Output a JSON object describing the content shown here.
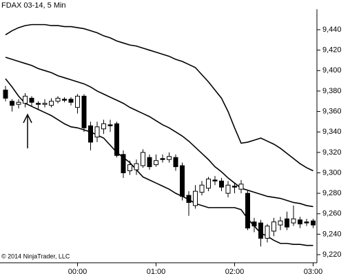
{
  "chart_data": {
    "type": "candlestick",
    "title": "FDAX 03-14, 5 Min",
    "annotation": "© 2014 NinjaTrader, LLC",
    "categories": [
      null,
      null,
      null,
      null,
      null,
      null,
      null,
      null,
      null,
      null,
      null,
      "00:00",
      null,
      null,
      null,
      null,
      null,
      null,
      null,
      null,
      null,
      null,
      null,
      "01:00",
      null,
      null,
      null,
      null,
      null,
      null,
      null,
      null,
      null,
      null,
      null,
      "02:00",
      null,
      null,
      null,
      null,
      null,
      null,
      null,
      null,
      null,
      null,
      null,
      "03:00"
    ],
    "open": [
      9381,
      9370,
      9367,
      9368,
      9373,
      9368,
      9367,
      9366,
      9370,
      9372,
      9372,
      9364,
      9375,
      9346,
      9335,
      9343,
      9347,
      9348,
      9318,
      9302,
      9303,
      9307,
      9315,
      9308,
      9314,
      9313,
      9315,
      9307,
      9278,
      9268,
      9281,
      9285,
      9293,
      9292,
      9280,
      9287,
      9284,
      9280,
      9252,
      9251,
      9236,
      9243,
      9249,
      9255,
      9251,
      9254,
      9252,
      9253
    ],
    "high": [
      9385,
      9372,
      9372,
      9378,
      9375,
      9370,
      9372,
      9373,
      9375,
      9374,
      9374,
      9377,
      9377,
      9350,
      9350,
      9352,
      9352,
      9350,
      9322,
      9312,
      9313,
      9323,
      9318,
      9318,
      9318,
      9320,
      9318,
      9310,
      9282,
      9288,
      9292,
      9296,
      9297,
      9295,
      9292,
      9290,
      9293,
      9283,
      9256,
      9254,
      9250,
      9256,
      9257,
      9262,
      9268,
      9257,
      9255,
      9255
    ],
    "low": [
      9370,
      9360,
      9363,
      9364,
      9365,
      9362,
      9364,
      9364,
      9368,
      9369,
      9366,
      9358,
      9340,
      9322,
      9330,
      9338,
      9340,
      9315,
      9295,
      9298,
      9298,
      9305,
      9303,
      9306,
      9310,
      9310,
      9302,
      9273,
      9258,
      9265,
      9278,
      9282,
      9288,
      9282,
      9276,
      9280,
      9280,
      9244,
      9242,
      9228,
      9232,
      9238,
      9244,
      9244,
      9248,
      9246,
      9248,
      9246
    ],
    "close": [
      9373,
      9366,
      9369,
      9375,
      9369,
      9367,
      9368,
      9370,
      9373,
      9371,
      9369,
      9375,
      9344,
      9330,
      9345,
      9348,
      9346,
      9317,
      9300,
      9308,
      9309,
      9320,
      9306,
      9312,
      9313,
      9316,
      9306,
      9277,
      9271,
      9282,
      9288,
      9294,
      9292,
      9286,
      9288,
      9286,
      9289,
      9246,
      9248,
      9236,
      9248,
      9252,
      9253,
      9247,
      9255,
      9250,
      9251,
      9249
    ],
    "bands": [
      {
        "values": [
          9435,
          9439,
          9442,
          9444,
          9445,
          9445,
          9445,
          9444,
          9444,
          9443,
          9443,
          9442,
          9441,
          9439,
          9437,
          9434,
          9432,
          9429,
          9427,
          9425,
          9424,
          9422,
          9420,
          9418,
          9416,
          9414,
          9411,
          9409,
          9406,
          9403,
          9396,
          9389,
          9381,
          9373,
          9360,
          9344,
          9329,
          9330,
          9332,
          9334,
          9331,
          9328,
          9324,
          9319,
          9314,
          9309,
          9305,
          9302
        ]
      },
      {
        "values": [
          9413,
          9411,
          9409,
          9407,
          9405,
          9402,
          9400,
          9398,
          9395,
          9393,
          9391,
          9389,
          9387,
          9384,
          9380,
          9377,
          9374,
          9371,
          9368,
          9364,
          9361,
          9358,
          9355,
          9351,
          9347,
          9344,
          9340,
          9336,
          9331,
          9325,
          9319,
          9313,
          9306,
          9301,
          9295,
          9290,
          9285,
          9283,
          9281,
          9279,
          9277,
          9276,
          9275,
          9273,
          9271,
          9270,
          9268,
          9267
        ]
      },
      {
        "values": [
          9392,
          9384,
          9375,
          9368,
          9365,
          9362,
          9359,
          9356,
          9352,
          9348,
          9345,
          9344,
          9342,
          9340,
          9337,
          9334,
          9327,
          9320,
          9315,
          9310,
          9303,
          9296,
          9293,
          9290,
          9287,
          9284,
          9280,
          9277,
          9274,
          9270,
          9268,
          9266,
          9266,
          9266,
          9266,
          9266,
          9264,
          9255,
          9248,
          9241,
          9238,
          9234,
          9231,
          9231,
          9230,
          9230,
          9229,
          9229
        ]
      }
    ],
    "up_color": "#ffffff",
    "down_color": "#000000",
    "line_color": "#000000",
    "ylim": [
      9212,
      9460
    ],
    "yticks": [
      {
        "value": 9220,
        "label": "9,220"
      },
      {
        "value": 9240,
        "label": "9,240"
      },
      {
        "value": 9260,
        "label": "9,260"
      },
      {
        "value": 9280,
        "label": "9,280"
      },
      {
        "value": 9300,
        "label": "9,300"
      },
      {
        "value": 9320,
        "label": "9,320"
      },
      {
        "value": 9340,
        "label": "9,340"
      },
      {
        "value": 9360,
        "label": "9,360"
      },
      {
        "value": 9380,
        "label": "9,380"
      },
      {
        "value": 9400,
        "label": "9,400"
      },
      {
        "value": 9420,
        "label": "9,420"
      },
      {
        "value": 9440,
        "label": "9,440"
      }
    ]
  }
}
